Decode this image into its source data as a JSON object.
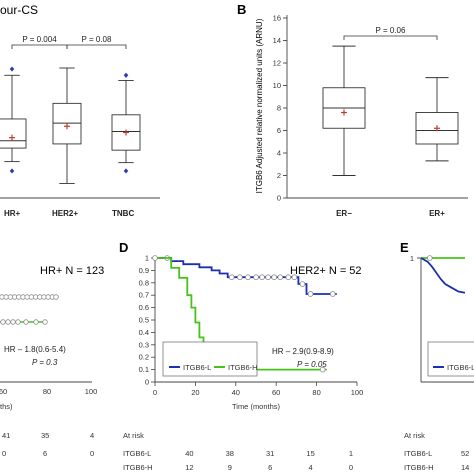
{
  "chart_data": [
    {
      "id": "A",
      "type": "box",
      "title_fragment": "our-CS",
      "categories": [
        "HR+",
        "HER2+",
        "TNBC"
      ],
      "boxes": [
        {
          "whisker_low": 3.5,
          "q1": 4.8,
          "median": 5.5,
          "q3": 7.6,
          "whisker_high": 11.8,
          "mean": 5.8,
          "out_low": 2.6,
          "out_high": 12.4
        },
        {
          "whisker_low": 1.4,
          "q1": 5.2,
          "median": 7.2,
          "q3": 9.1,
          "whisker_high": 12.5,
          "mean": 6.9,
          "out_low": null,
          "out_high": null
        },
        {
          "whisker_low": 3.4,
          "q1": 4.6,
          "median": 6.4,
          "q3": 8.0,
          "whisker_high": 11.3,
          "mean": 6.3,
          "out_low": 2.6,
          "out_high": 11.8
        }
      ],
      "annotations": [
        {
          "text": "P = 0.004",
          "from": 0,
          "to": 1
        },
        {
          "text": "P = 0.08",
          "from": 1,
          "to": 2
        }
      ]
    },
    {
      "id": "B",
      "type": "box",
      "panel_label": "B",
      "ylabel": "ITGB6 Adjusted relative normalized units (ARNU)",
      "ylim": [
        0,
        16
      ],
      "yticks": [
        0,
        2,
        4,
        6,
        8,
        10,
        12,
        14,
        16
      ],
      "categories": [
        "ER−",
        "ER+"
      ],
      "boxes": [
        {
          "whisker_low": 2.0,
          "q1": 6.2,
          "median": 8.0,
          "q3": 9.8,
          "whisker_high": 13.5,
          "mean": 7.6,
          "out_low": null,
          "out_high": null
        },
        {
          "whisker_low": 3.3,
          "q1": 4.8,
          "median": 6.0,
          "q3": 7.6,
          "whisker_high": 10.7,
          "mean": 6.2,
          "out_low": null,
          "out_high": null
        }
      ],
      "annotations": [
        {
          "text": "P = 0.06",
          "from": 0,
          "to": 1
        }
      ]
    },
    {
      "id": "C",
      "type": "line",
      "inset_title": "HR+ N = 123",
      "xticks": [
        "60",
        "80",
        "100"
      ],
      "xlabel": "ths)",
      "hr_text": "HR – 1.8(0.6-5.4)",
      "p_text": "P = 0.3",
      "series": [
        {
          "color": "#1a2fb5",
          "points": [
            [
              40,
              0.95
            ],
            [
              85,
              0.95
            ]
          ]
        },
        {
          "color": "#46c21a",
          "points": [
            [
              40,
              0.93
            ],
            [
              80,
              0.93
            ]
          ]
        }
      ],
      "risk_rows": [
        [
          "41",
          "35",
          "4"
        ],
        [
          "0",
          "6",
          "0"
        ]
      ]
    },
    {
      "id": "D",
      "type": "line",
      "panel_label": "D",
      "inset_title": "HER2+ N = 52",
      "xlim": [
        0,
        100
      ],
      "ylim": [
        0,
        1
      ],
      "xticks": [
        "0",
        "20",
        "40",
        "60",
        "80",
        "100"
      ],
      "yticks": [
        "0",
        "0.1",
        "0.2",
        "0.3",
        "0.4",
        "0.5",
        "0.6",
        "0.7",
        "0.8",
        "0.9",
        "1"
      ],
      "xlabel": "Time (months)",
      "hr_text": "HR – 2.9(0.9-8.9)",
      "p_text": "P = 0.05",
      "legend": [
        "ITGB6-L",
        "ITGB6-H"
      ],
      "series": [
        {
          "name": "ITGB6-L",
          "color": "#1a2fb5",
          "points": [
            [
              0,
              1
            ],
            [
              8,
              1
            ],
            [
              8,
              0.975
            ],
            [
              14,
              0.975
            ],
            [
              14,
              0.95
            ],
            [
              22,
              0.95
            ],
            [
              22,
              0.925
            ],
            [
              28,
              0.925
            ],
            [
              28,
              0.9
            ],
            [
              32,
              0.9
            ],
            [
              32,
              0.875
            ],
            [
              36,
              0.875
            ],
            [
              36,
              0.845
            ],
            [
              71,
              0.845
            ],
            [
              71,
              0.79
            ],
            [
              75,
              0.79
            ],
            [
              75,
              0.71
            ],
            [
              90,
              0.71
            ]
          ],
          "censor": [
            [
              6,
              1
            ],
            [
              38,
              0.845
            ],
            [
              42,
              0.845
            ],
            [
              46,
              0.845
            ],
            [
              50,
              0.845
            ],
            [
              53,
              0.845
            ],
            [
              56,
              0.845
            ],
            [
              59,
              0.845
            ],
            [
              62,
              0.845
            ],
            [
              66,
              0.845
            ],
            [
              69,
              0.845
            ],
            [
              73,
              0.79
            ],
            [
              77,
              0.71
            ],
            [
              88,
              0.71
            ]
          ]
        },
        {
          "name": "ITGB6-H",
          "color": "#46c21a",
          "points": [
            [
              0,
              1
            ],
            [
              8,
              1
            ],
            [
              8,
              0.92
            ],
            [
              12,
              0.92
            ],
            [
              12,
              0.84
            ],
            [
              16,
              0.84
            ],
            [
              16,
              0.7
            ],
            [
              18,
              0.7
            ],
            [
              18,
              0.6
            ],
            [
              20,
              0.6
            ],
            [
              20,
              0.48
            ],
            [
              22,
              0.48
            ],
            [
              22,
              0.36
            ],
            [
              24,
              0.36
            ],
            [
              24,
              0.25
            ],
            [
              26,
              0.25
            ],
            [
              26,
              0.2
            ],
            [
              29,
              0.2
            ],
            [
              29,
              0.13
            ],
            [
              32,
              0.13
            ],
            [
              32,
              0.1
            ],
            [
              85,
              0.1
            ]
          ],
          "censor": [
            [
              0,
              1
            ],
            [
              83,
              0.1
            ]
          ]
        }
      ],
      "risk_header": "At risk",
      "risk_rows": [
        {
          "label": "ITGB6-L",
          "values": [
            "40",
            "38",
            "31",
            "15",
            "1"
          ]
        },
        {
          "label": "ITGB6-H",
          "values": [
            "12",
            "9",
            "6",
            "4",
            "0"
          ]
        }
      ]
    },
    {
      "id": "E",
      "type": "line",
      "panel_label": "E",
      "ytick_top": "1",
      "legend": [
        "ITGB6-L"
      ],
      "series": [
        {
          "name": "ITGB6-L",
          "color": "#1a2fb5",
          "points": [
            [
              0,
              1
            ],
            [
              3,
              0.97
            ],
            [
              5,
              0.93
            ],
            [
              7,
              0.88
            ],
            [
              9,
              0.83
            ],
            [
              11,
              0.79
            ],
            [
              14,
              0.76
            ],
            [
              17,
              0.73
            ],
            [
              20,
              0.72
            ]
          ]
        },
        {
          "color": "#46c21a",
          "points": [
            [
              0,
              1
            ],
            [
              20,
              1
            ]
          ]
        }
      ],
      "risk_header": "At risk",
      "risk_rows": [
        {
          "label": "ITGB6-L",
          "values": [
            "52"
          ]
        },
        {
          "label": "ITGB6-H",
          "values": [
            "14"
          ]
        }
      ]
    }
  ]
}
